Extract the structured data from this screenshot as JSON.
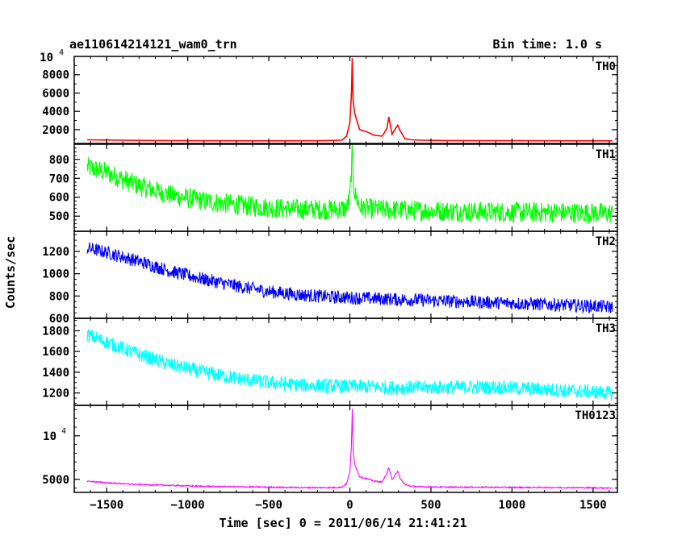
{
  "header": {
    "title_left": "ae110614214121_wam0_trn",
    "title_right": "Bin time: 1.0 s"
  },
  "chart_data": {
    "type": "line",
    "xlabel": "Time [sec] 0 = 2011/06/14 21:41:21",
    "ylabel": "Counts/sec",
    "xlim": [
      -1700,
      1650
    ],
    "x_ticks": [
      -1500,
      -1000,
      -500,
      0,
      500,
      1000,
      1500
    ],
    "x_tick_labels": [
      "−1500",
      "−1000",
      "−500",
      "0",
      "500",
      "1000",
      "1500"
    ],
    "panels": [
      {
        "label": "TH0",
        "color": "#ff0000",
        "ylim": [
          500,
          10000
        ],
        "y_ticks": [
          2000,
          4000,
          6000,
          8000
        ],
        "y_tick_labels": [
          "2000",
          "4000",
          "6000",
          "8000"
        ],
        "top_exponent_label": {
          "base": "10",
          "exp": "4"
        },
        "series": {
          "x": [
            -1620,
            -1400,
            -1200,
            -1000,
            -800,
            -600,
            -400,
            -200,
            -50,
            -20,
            0,
            10,
            15,
            20,
            30,
            60,
            100,
            150,
            200,
            230,
            240,
            260,
            280,
            295,
            310,
            340,
            380,
            450,
            600,
            800,
            1000,
            1200,
            1400,
            1620
          ],
          "y": [
            900,
            850,
            820,
            800,
            790,
            780,
            780,
            790,
            850,
            1300,
            2800,
            6000,
            9800,
            5200,
            3800,
            2000,
            1800,
            1400,
            1300,
            2200,
            3400,
            1500,
            2100,
            2500,
            1900,
            1000,
            900,
            850,
            820,
            800,
            800,
            790,
            780,
            780
          ]
        }
      },
      {
        "label": "TH1",
        "color": "#00ff00",
        "ylim": [
          420,
          880
        ],
        "y_ticks": [
          500,
          600,
          700,
          800
        ],
        "y_tick_labels": [
          "500",
          "600",
          "700",
          "800"
        ],
        "series": {
          "x": [
            -1620,
            -1500,
            -1300,
            -1100,
            -900,
            -700,
            -500,
            -300,
            -100,
            -20,
            0,
            10,
            15,
            20,
            30,
            60,
            100,
            200,
            400,
            700,
            1000,
            1300,
            1620
          ],
          "y": [
            760,
            730,
            660,
            610,
            580,
            560,
            545,
            535,
            535,
            540,
            600,
            750,
            860,
            700,
            620,
            550,
            540,
            535,
            530,
            525,
            520,
            520,
            515
          ],
          "noise": 55
        }
      },
      {
        "label": "TH2",
        "color": "#0000ff",
        "ylim": [
          600,
          1380
        ],
        "y_ticks": [
          600,
          800,
          1000,
          1200
        ],
        "y_tick_labels": [
          "600",
          "800",
          "1000",
          "1200"
        ],
        "series": {
          "x": [
            -1620,
            -1500,
            -1300,
            -1100,
            -900,
            -700,
            -500,
            -300,
            -100,
            100,
            300,
            500,
            700,
            900,
            1100,
            1300,
            1500,
            1620
          ],
          "y": [
            1230,
            1190,
            1110,
            1020,
            950,
            890,
            840,
            810,
            790,
            780,
            770,
            760,
            750,
            740,
            730,
            720,
            710,
            700
          ],
          "noise": 60
        }
      },
      {
        "label": "TH3",
        "color": "#00ffff",
        "ylim": [
          1080,
          1920
        ],
        "y_ticks": [
          1200,
          1400,
          1600,
          1800
        ],
        "y_tick_labels": [
          "1200",
          "1400",
          "1600",
          "1800"
        ],
        "series": {
          "x": [
            -1620,
            -1500,
            -1300,
            -1100,
            -900,
            -700,
            -500,
            -300,
            -100,
            100,
            300,
            500,
            700,
            900,
            1100,
            1300,
            1500,
            1620
          ],
          "y": [
            1760,
            1690,
            1570,
            1470,
            1400,
            1340,
            1300,
            1275,
            1265,
            1260,
            1250,
            1250,
            1255,
            1255,
            1240,
            1225,
            1210,
            1195
          ],
          "noise": 70
        }
      },
      {
        "label": "TH0123",
        "color": "#ff00ff",
        "ylim": [
          3500,
          13500
        ],
        "y_ticks": [
          5000,
          10000
        ],
        "y_tick_labels": [
          "5000",
          ""
        ],
        "ten4_tick": {
          "base": "10",
          "exp": "4",
          "value": 10000
        },
        "series": {
          "x": [
            -1620,
            -1500,
            -1300,
            -1100,
            -900,
            -700,
            -500,
            -300,
            -100,
            -50,
            -20,
            0,
            10,
            15,
            20,
            30,
            60,
            100,
            150,
            200,
            230,
            240,
            260,
            280,
            295,
            310,
            340,
            380,
            450,
            600,
            800,
            1000,
            1200,
            1400,
            1620
          ],
          "y": [
            4800,
            4600,
            4400,
            4300,
            4200,
            4150,
            4100,
            4050,
            4050,
            4100,
            4500,
            5800,
            9000,
            13300,
            8200,
            6800,
            5300,
            5100,
            4800,
            4700,
            5800,
            6400,
            4900,
            5600,
            5900,
            5100,
            4400,
            4200,
            4150,
            4100,
            4100,
            4080,
            4060,
            4050,
            4000
          ],
          "noise": 70
        }
      }
    ]
  }
}
